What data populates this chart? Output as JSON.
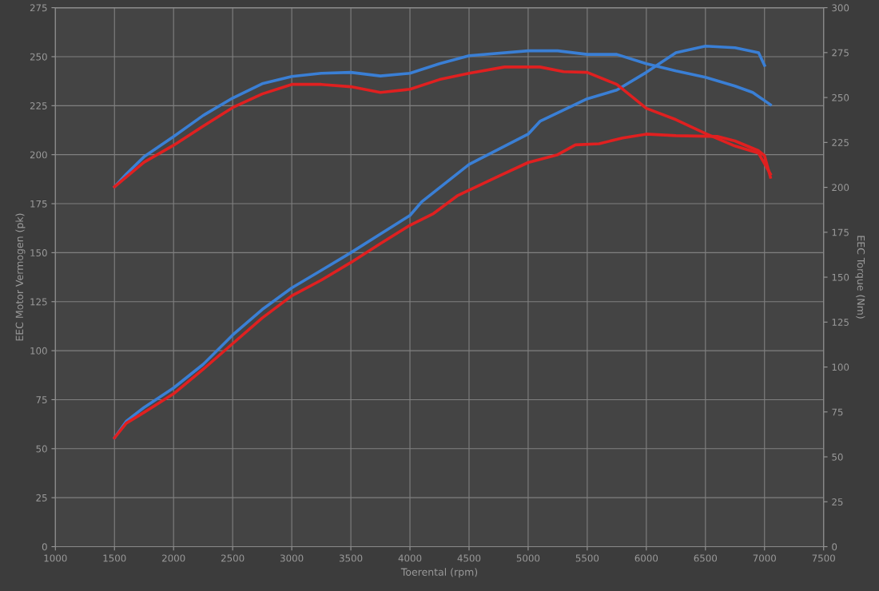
{
  "chart_data": {
    "type": "line",
    "xlabel": "Toerental (rpm)",
    "ylabel": "EEC Motor Vermogen (pk)",
    "y2label": "EEC Torque (Nm)",
    "xlim": [
      1000,
      7500
    ],
    "xticks": [
      1000,
      1500,
      2000,
      2500,
      3000,
      3500,
      4000,
      4500,
      5000,
      5500,
      6000,
      6500,
      7000,
      7500
    ],
    "ylim": [
      0,
      275
    ],
    "yticks": [
      0,
      25,
      50,
      75,
      100,
      125,
      150,
      175,
      200,
      225,
      250,
      275
    ],
    "y2lim": [
      0,
      300
    ],
    "y2ticks": [
      0,
      25,
      50,
      75,
      100,
      125,
      150,
      175,
      200,
      225,
      250,
      275,
      300
    ],
    "grid": true,
    "marker": "none",
    "line_style": "solid",
    "series": [
      {
        "color": "#3a7fd5",
        "axis": "y",
        "x": [
          1500,
          1600,
          1750,
          2000,
          2250,
          2500,
          2750,
          3000,
          3250,
          3500,
          3750,
          4000,
          4100,
          4500,
          5000,
          5100,
          5500,
          5750,
          6000,
          6250,
          6500,
          6750,
          6950,
          7000
        ],
        "values": [
          55.5,
          64,
          71,
          81,
          93,
          108,
          121,
          132,
          141,
          150,
          159.5,
          169,
          176,
          195,
          210.5,
          217,
          228.5,
          233,
          242,
          252,
          255.4,
          254.6,
          252,
          245.6
        ]
      },
      {
        "color": "#e02020",
        "axis": "y",
        "x": [
          1500,
          1600,
          1750,
          2000,
          2250,
          2500,
          2750,
          3000,
          3250,
          3500,
          3750,
          4000,
          4200,
          4400,
          4750,
          5000,
          5250,
          5400,
          5600,
          5800,
          6000,
          6250,
          6600,
          6750,
          6950,
          7000,
          7050
        ],
        "values": [
          55.5,
          63,
          68.5,
          78,
          90.5,
          103.6,
          116.7,
          128,
          136,
          145,
          154.6,
          164,
          170,
          179,
          189,
          196,
          200,
          205,
          205.6,
          208.5,
          210.5,
          209.7,
          209.3,
          207,
          202,
          199.5,
          188.5
        ]
      },
      {
        "color": "#3a7fd5",
        "axis": "y2",
        "x": [
          1500,
          1600,
          1750,
          2000,
          2250,
          2500,
          2750,
          3000,
          3250,
          3500,
          3750,
          4000,
          4250,
          4500,
          5000,
          5250,
          5500,
          5750,
          6000,
          6250,
          6500,
          6750,
          6900,
          7050
        ],
        "values": [
          200.3,
          207.4,
          217,
          228.3,
          240,
          249.7,
          257.7,
          261.7,
          263.5,
          264,
          262,
          263.5,
          268.8,
          273.3,
          276,
          276,
          274,
          274,
          268.8,
          264.8,
          261.3,
          256.4,
          252.8,
          246
        ]
      },
      {
        "color": "#e02020",
        "axis": "y2",
        "x": [
          1500,
          1750,
          2000,
          2250,
          2500,
          2750,
          3000,
          3250,
          3500,
          3750,
          4000,
          4250,
          4500,
          4800,
          5100,
          5300,
          5500,
          5750,
          6000,
          6250,
          6500,
          6750,
          6950,
          7050
        ],
        "values": [
          200.3,
          214,
          223.4,
          234,
          244.4,
          252,
          257.3,
          257.3,
          256,
          252.8,
          254.6,
          260,
          263.5,
          267,
          267,
          264.4,
          264,
          257.3,
          244,
          237.7,
          230,
          223,
          219,
          207.4
        ]
      }
    ]
  }
}
